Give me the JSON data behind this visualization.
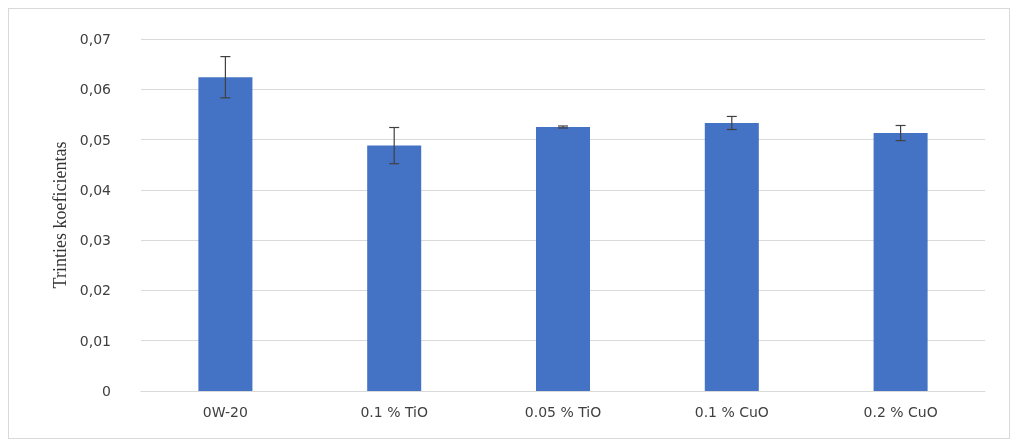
{
  "chart_data": {
    "type": "bar",
    "ylabel": "Trinties koeficientas",
    "categories": [
      "0W-20",
      "0.1 % TiO",
      "0.05 % TiO",
      "0.1 % CuO",
      "0.2 % CuO"
    ],
    "values": [
      0.0624,
      0.0488,
      0.0525,
      0.0533,
      0.0513
    ],
    "errors": [
      0.0041,
      0.0036,
      0.0002,
      0.0013,
      0.0015
    ],
    "color": "#4472c4",
    "ylim": [
      0,
      0.07
    ],
    "yticks": [
      0,
      {
        "value": 0.01,
        "label": "0,01"
      },
      {
        "value": 0.02,
        "label": "0,02"
      },
      {
        "value": 0.03,
        "label": "0,03"
      },
      {
        "value": 0.04,
        "label": "0,04"
      },
      {
        "value": 0.05,
        "label": "0,05"
      },
      {
        "value": 0.06,
        "label": "0,06"
      },
      {
        "value": 0.07,
        "label": "0,07"
      }
    ],
    "grid": "y"
  }
}
